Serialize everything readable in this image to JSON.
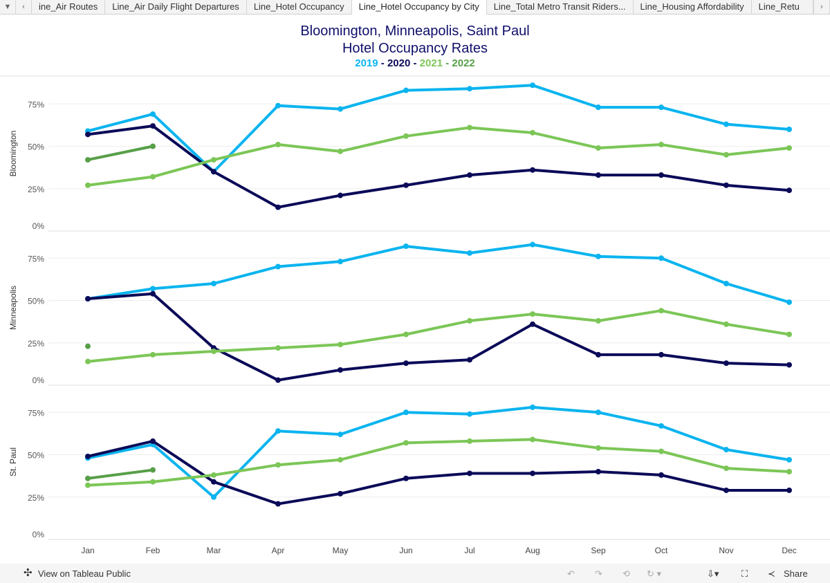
{
  "tabs": [
    "ine_Air Routes",
    "Line_Air Daily Flight Departures",
    "Line_Hotel Occupancy",
    "Line_Hotel Occupancy by City",
    "Line_Total Metro Transit Riders...",
    "Line_Housing Affordability",
    "Line_Retu"
  ],
  "active_tab": 3,
  "title_line1": "Bloomington, Minneapolis, Saint Paul",
  "title_line2": "Hotel Occupancy Rates",
  "legend": {
    "y2019": "2019",
    "sep1": " - ",
    "y2020": "2020",
    "sep2": " - ",
    "y2021": "2021",
    "sep3": " - ",
    "y2022": "2022"
  },
  "colors": {
    "2019": "#0bb4ef",
    "2020": "#0b0a58",
    "2021": "#7cc657",
    "2022": "#579f48"
  },
  "footer": {
    "view": "View on Tableau Public",
    "share": "Share"
  },
  "chart_data": {
    "type": "line",
    "categories": [
      "Jan",
      "Feb",
      "Mar",
      "Apr",
      "May",
      "Jun",
      "Jul",
      "Aug",
      "Sep",
      "Oct",
      "Nov",
      "Dec"
    ],
    "yticks": [
      "0%",
      "25%",
      "50%",
      "75%"
    ],
    "ylim": [
      0,
      100
    ],
    "grid": true,
    "panels": [
      {
        "label": "Bloomington",
        "series": [
          {
            "name": "2019",
            "values": [
              59,
              69,
              35,
              74,
              72,
              83,
              84,
              86,
              73,
              73,
              63,
              60
            ]
          },
          {
            "name": "2020",
            "values": [
              57,
              62,
              35,
              14,
              21,
              27,
              33,
              36,
              33,
              33,
              27,
              24
            ]
          },
          {
            "name": "2021",
            "values": [
              27,
              32,
              42,
              51,
              47,
              56,
              61,
              58,
              49,
              51,
              45,
              49
            ]
          },
          {
            "name": "2022",
            "values": [
              42,
              50
            ]
          }
        ]
      },
      {
        "label": "Minneapolis",
        "series": [
          {
            "name": "2019",
            "values": [
              51,
              57,
              60,
              70,
              73,
              82,
              78,
              83,
              76,
              75,
              60,
              49
            ]
          },
          {
            "name": "2020",
            "values": [
              51,
              54,
              22,
              3,
              9,
              13,
              15,
              36,
              18,
              18,
              13,
              12
            ]
          },
          {
            "name": "2021",
            "values": [
              14,
              18,
              20,
              22,
              24,
              30,
              38,
              42,
              38,
              44,
              36,
              30
            ]
          },
          {
            "name": "2022",
            "values": [
              23
            ]
          }
        ]
      },
      {
        "label": "St. Paul",
        "series": [
          {
            "name": "2019",
            "values": [
              48,
              56,
              25,
              64,
              62,
              75,
              74,
              78,
              75,
              67,
              53,
              47
            ]
          },
          {
            "name": "2020",
            "values": [
              49,
              58,
              34,
              21,
              27,
              36,
              39,
              39,
              40,
              38,
              29,
              29
            ]
          },
          {
            "name": "2021",
            "values": [
              32,
              34,
              38,
              44,
              47,
              57,
              58,
              59,
              54,
              52,
              42,
              40
            ]
          },
          {
            "name": "2022",
            "values": [
              36,
              41
            ]
          }
        ]
      }
    ]
  }
}
